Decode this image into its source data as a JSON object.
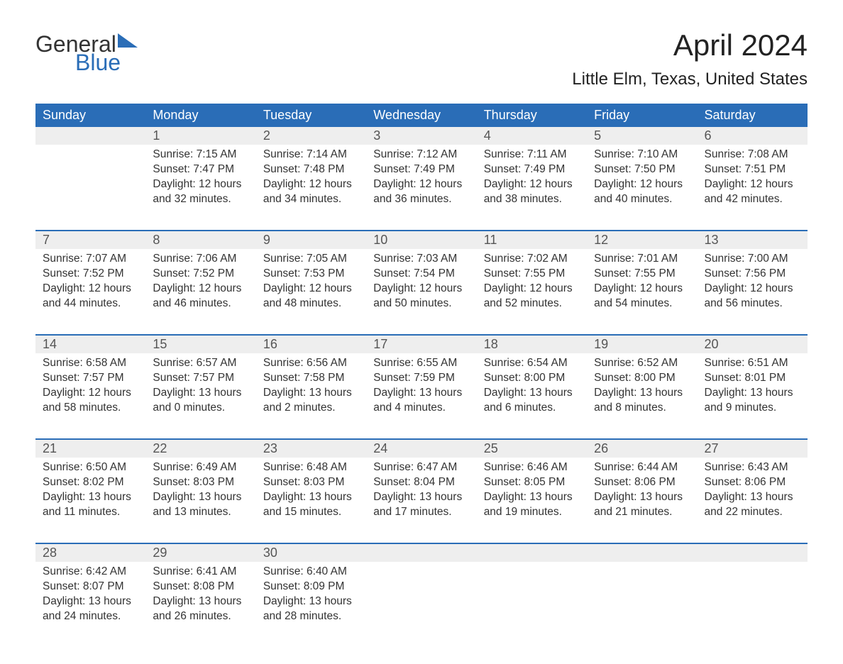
{
  "logo": {
    "line1": "General",
    "line2": "Blue"
  },
  "title": "April 2024",
  "location": "Little Elm, Texas, United States",
  "colors": {
    "accent": "#2a6db7",
    "header_text": "#ffffff",
    "daynum_bg": "#eeeeee",
    "body_text": "#333333",
    "background": "#ffffff"
  },
  "day_headers": [
    "Sunday",
    "Monday",
    "Tuesday",
    "Wednesday",
    "Thursday",
    "Friday",
    "Saturday"
  ],
  "weeks": [
    [
      {
        "num": "",
        "sunrise": "",
        "sunset": "",
        "daylight": ""
      },
      {
        "num": "1",
        "sunrise": "Sunrise: 7:15 AM",
        "sunset": "Sunset: 7:47 PM",
        "daylight": "Daylight: 12 hours and 32 minutes."
      },
      {
        "num": "2",
        "sunrise": "Sunrise: 7:14 AM",
        "sunset": "Sunset: 7:48 PM",
        "daylight": "Daylight: 12 hours and 34 minutes."
      },
      {
        "num": "3",
        "sunrise": "Sunrise: 7:12 AM",
        "sunset": "Sunset: 7:49 PM",
        "daylight": "Daylight: 12 hours and 36 minutes."
      },
      {
        "num": "4",
        "sunrise": "Sunrise: 7:11 AM",
        "sunset": "Sunset: 7:49 PM",
        "daylight": "Daylight: 12 hours and 38 minutes."
      },
      {
        "num": "5",
        "sunrise": "Sunrise: 7:10 AM",
        "sunset": "Sunset: 7:50 PM",
        "daylight": "Daylight: 12 hours and 40 minutes."
      },
      {
        "num": "6",
        "sunrise": "Sunrise: 7:08 AM",
        "sunset": "Sunset: 7:51 PM",
        "daylight": "Daylight: 12 hours and 42 minutes."
      }
    ],
    [
      {
        "num": "7",
        "sunrise": "Sunrise: 7:07 AM",
        "sunset": "Sunset: 7:52 PM",
        "daylight": "Daylight: 12 hours and 44 minutes."
      },
      {
        "num": "8",
        "sunrise": "Sunrise: 7:06 AM",
        "sunset": "Sunset: 7:52 PM",
        "daylight": "Daylight: 12 hours and 46 minutes."
      },
      {
        "num": "9",
        "sunrise": "Sunrise: 7:05 AM",
        "sunset": "Sunset: 7:53 PM",
        "daylight": "Daylight: 12 hours and 48 minutes."
      },
      {
        "num": "10",
        "sunrise": "Sunrise: 7:03 AM",
        "sunset": "Sunset: 7:54 PM",
        "daylight": "Daylight: 12 hours and 50 minutes."
      },
      {
        "num": "11",
        "sunrise": "Sunrise: 7:02 AM",
        "sunset": "Sunset: 7:55 PM",
        "daylight": "Daylight: 12 hours and 52 minutes."
      },
      {
        "num": "12",
        "sunrise": "Sunrise: 7:01 AM",
        "sunset": "Sunset: 7:55 PM",
        "daylight": "Daylight: 12 hours and 54 minutes."
      },
      {
        "num": "13",
        "sunrise": "Sunrise: 7:00 AM",
        "sunset": "Sunset: 7:56 PM",
        "daylight": "Daylight: 12 hours and 56 minutes."
      }
    ],
    [
      {
        "num": "14",
        "sunrise": "Sunrise: 6:58 AM",
        "sunset": "Sunset: 7:57 PM",
        "daylight": "Daylight: 12 hours and 58 minutes."
      },
      {
        "num": "15",
        "sunrise": "Sunrise: 6:57 AM",
        "sunset": "Sunset: 7:57 PM",
        "daylight": "Daylight: 13 hours and 0 minutes."
      },
      {
        "num": "16",
        "sunrise": "Sunrise: 6:56 AM",
        "sunset": "Sunset: 7:58 PM",
        "daylight": "Daylight: 13 hours and 2 minutes."
      },
      {
        "num": "17",
        "sunrise": "Sunrise: 6:55 AM",
        "sunset": "Sunset: 7:59 PM",
        "daylight": "Daylight: 13 hours and 4 minutes."
      },
      {
        "num": "18",
        "sunrise": "Sunrise: 6:54 AM",
        "sunset": "Sunset: 8:00 PM",
        "daylight": "Daylight: 13 hours and 6 minutes."
      },
      {
        "num": "19",
        "sunrise": "Sunrise: 6:52 AM",
        "sunset": "Sunset: 8:00 PM",
        "daylight": "Daylight: 13 hours and 8 minutes."
      },
      {
        "num": "20",
        "sunrise": "Sunrise: 6:51 AM",
        "sunset": "Sunset: 8:01 PM",
        "daylight": "Daylight: 13 hours and 9 minutes."
      }
    ],
    [
      {
        "num": "21",
        "sunrise": "Sunrise: 6:50 AM",
        "sunset": "Sunset: 8:02 PM",
        "daylight": "Daylight: 13 hours and 11 minutes."
      },
      {
        "num": "22",
        "sunrise": "Sunrise: 6:49 AM",
        "sunset": "Sunset: 8:03 PM",
        "daylight": "Daylight: 13 hours and 13 minutes."
      },
      {
        "num": "23",
        "sunrise": "Sunrise: 6:48 AM",
        "sunset": "Sunset: 8:03 PM",
        "daylight": "Daylight: 13 hours and 15 minutes."
      },
      {
        "num": "24",
        "sunrise": "Sunrise: 6:47 AM",
        "sunset": "Sunset: 8:04 PM",
        "daylight": "Daylight: 13 hours and 17 minutes."
      },
      {
        "num": "25",
        "sunrise": "Sunrise: 6:46 AM",
        "sunset": "Sunset: 8:05 PM",
        "daylight": "Daylight: 13 hours and 19 minutes."
      },
      {
        "num": "26",
        "sunrise": "Sunrise: 6:44 AM",
        "sunset": "Sunset: 8:06 PM",
        "daylight": "Daylight: 13 hours and 21 minutes."
      },
      {
        "num": "27",
        "sunrise": "Sunrise: 6:43 AM",
        "sunset": "Sunset: 8:06 PM",
        "daylight": "Daylight: 13 hours and 22 minutes."
      }
    ],
    [
      {
        "num": "28",
        "sunrise": "Sunrise: 6:42 AM",
        "sunset": "Sunset: 8:07 PM",
        "daylight": "Daylight: 13 hours and 24 minutes."
      },
      {
        "num": "29",
        "sunrise": "Sunrise: 6:41 AM",
        "sunset": "Sunset: 8:08 PM",
        "daylight": "Daylight: 13 hours and 26 minutes."
      },
      {
        "num": "30",
        "sunrise": "Sunrise: 6:40 AM",
        "sunset": "Sunset: 8:09 PM",
        "daylight": "Daylight: 13 hours and 28 minutes."
      },
      {
        "num": "",
        "sunrise": "",
        "sunset": "",
        "daylight": ""
      },
      {
        "num": "",
        "sunrise": "",
        "sunset": "",
        "daylight": ""
      },
      {
        "num": "",
        "sunrise": "",
        "sunset": "",
        "daylight": ""
      },
      {
        "num": "",
        "sunrise": "",
        "sunset": "",
        "daylight": ""
      }
    ]
  ]
}
